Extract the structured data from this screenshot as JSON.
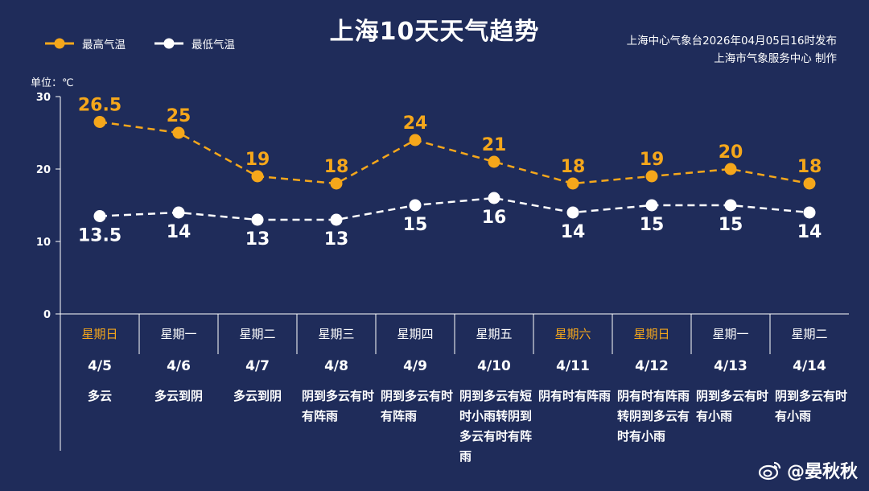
{
  "title": "上海10天天气趋势",
  "source_line1": "上海中心气象台2026年04月05日16时发布",
  "source_line2": "上海市气象服务中心 制作",
  "unit_label": "单位：℃",
  "legend": {
    "high": "最高气温",
    "low": "最低气温"
  },
  "watermark": "@晏秋秋",
  "colors": {
    "background": "#1f2c5a",
    "high": "#f5a71b",
    "low": "#ffffff",
    "grid": "#ffffff"
  },
  "chart_data": {
    "type": "line",
    "categories": [
      "4/5",
      "4/6",
      "4/7",
      "4/8",
      "4/9",
      "4/10",
      "4/11",
      "4/12",
      "4/13",
      "4/14"
    ],
    "ylim": [
      0,
      30
    ],
    "yticks": [
      0,
      10,
      20,
      30
    ],
    "grid": false,
    "legend_position": "top-left",
    "series": [
      {
        "name": "最高气温",
        "values": [
          26.5,
          25,
          19,
          18,
          24,
          21,
          18,
          19,
          20,
          18
        ],
        "labels": [
          "26.5",
          "25",
          "19",
          "18",
          "24",
          "21",
          "18",
          "19",
          "20",
          "18"
        ]
      },
      {
        "name": "最低气温",
        "values": [
          13.5,
          14,
          13,
          13,
          15,
          16,
          14,
          15,
          15,
          14
        ],
        "labels": [
          "13.5",
          "14",
          "13",
          "13",
          "15",
          "16",
          "14",
          "15",
          "15",
          "14"
        ]
      }
    ]
  },
  "days": [
    {
      "weekday": "星期日",
      "date": "4/5",
      "weather": "多云",
      "weekend": true
    },
    {
      "weekday": "星期一",
      "date": "4/6",
      "weather": "多云到阴",
      "weekend": false
    },
    {
      "weekday": "星期二",
      "date": "4/7",
      "weather": "多云到阴",
      "weekend": false
    },
    {
      "weekday": "星期三",
      "date": "4/8",
      "weather": "阴到多云有时有阵雨",
      "weekend": false
    },
    {
      "weekday": "星期四",
      "date": "4/9",
      "weather": "阴到多云有时有阵雨",
      "weekend": false
    },
    {
      "weekday": "星期五",
      "date": "4/10",
      "weather": "阴到多云有短时小雨转阴到多云有时有阵雨",
      "weekend": false
    },
    {
      "weekday": "星期六",
      "date": "4/11",
      "weather": "阴有时有阵雨",
      "weekend": true
    },
    {
      "weekday": "星期日",
      "date": "4/12",
      "weather": "阴有时有阵雨转阴到多云有时有小雨",
      "weekend": true
    },
    {
      "weekday": "星期一",
      "date": "4/13",
      "weather": "阴到多云有时有小雨",
      "weekend": false
    },
    {
      "weekday": "星期二",
      "date": "4/14",
      "weather": "阴到多云有时有小雨",
      "weekend": false
    }
  ]
}
